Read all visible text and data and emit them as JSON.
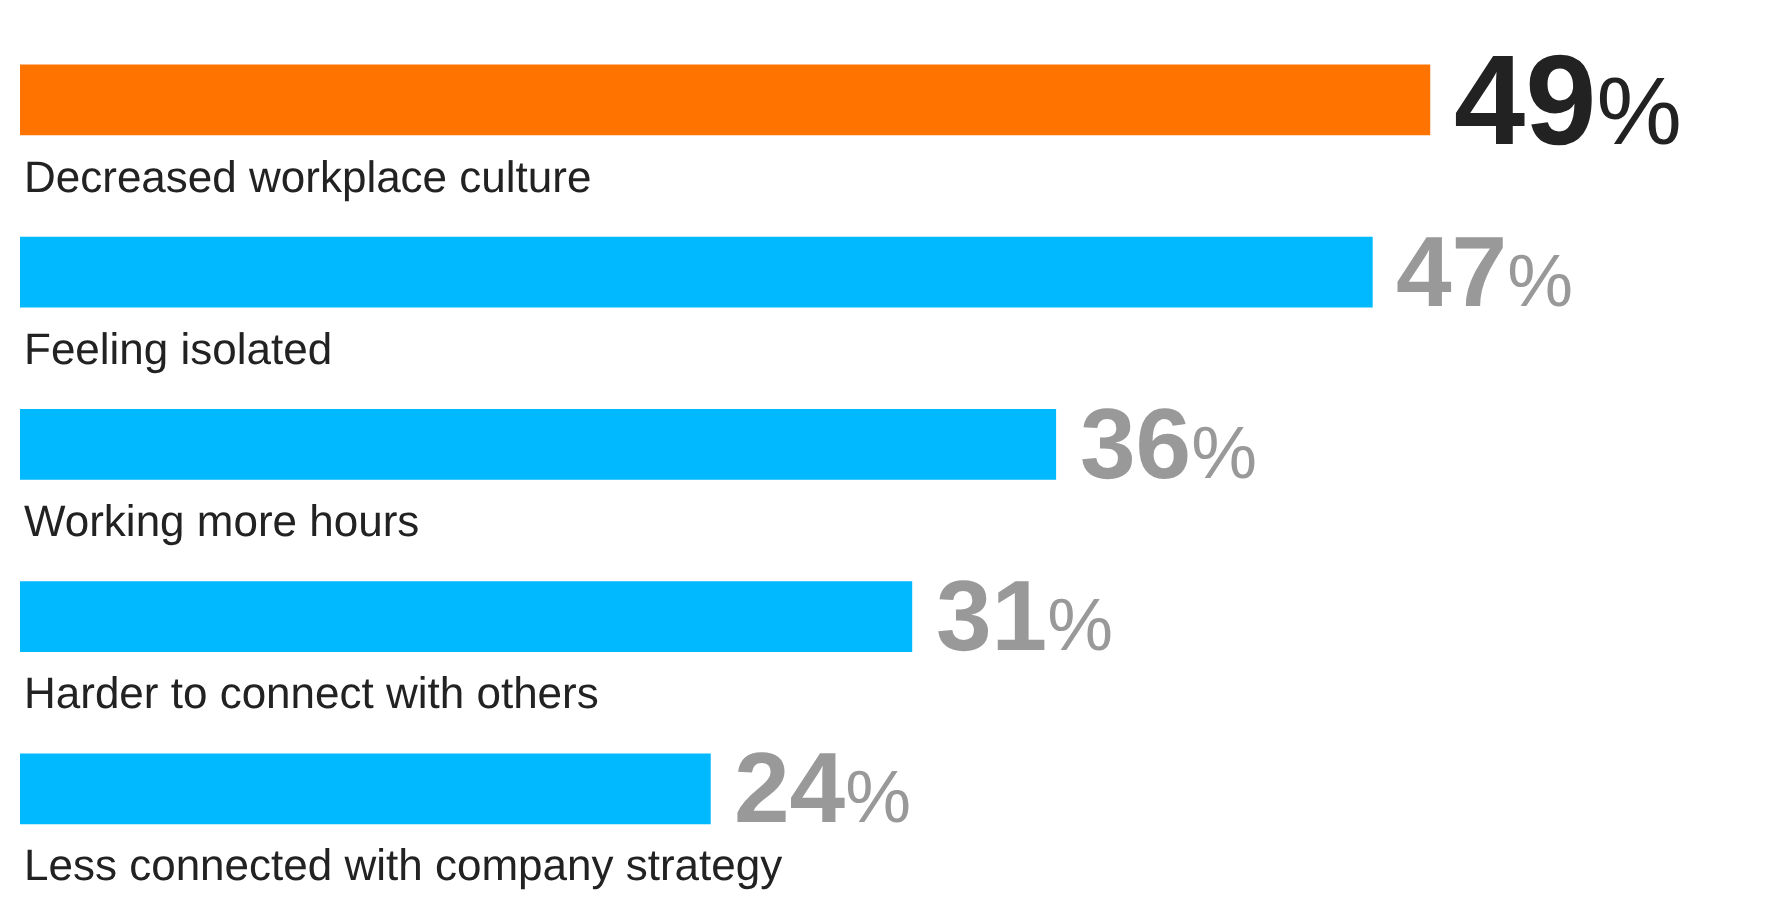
{
  "chart_data": {
    "type": "bar",
    "orientation": "horizontal",
    "categories": [
      "Decreased workplace culture",
      "Feeling isolated",
      "Working more hours",
      "Harder to connect with others",
      "Less connected with company strategy"
    ],
    "values": [
      49,
      47,
      36,
      31,
      24
    ],
    "colors": [
      "#ff7300",
      "#00b9ff",
      "#00b9ff",
      "#00b9ff",
      "#00b9ff"
    ],
    "value_labels": [
      "49%",
      "47%",
      "36%",
      "31%",
      "24%"
    ],
    "xlim": [
      0,
      61.5
    ],
    "tick_labels": false,
    "legend": false
  }
}
